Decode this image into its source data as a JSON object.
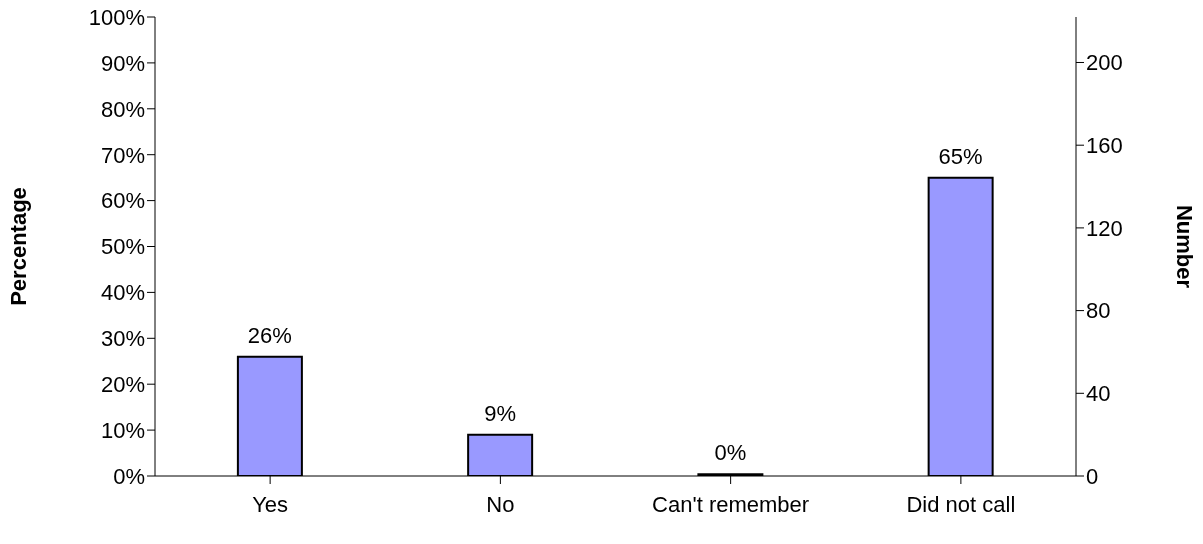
{
  "chart_data": {
    "type": "bar",
    "ylabel": "Percentage",
    "y2label": "Number",
    "categories": [
      "Yes",
      "No",
      "Can't remember",
      "Did not call"
    ],
    "values": [
      26,
      9,
      0.4,
      65
    ],
    "color": "#9999ff",
    "value_labels": [
      "26%",
      "9%",
      "0%",
      "65%"
    ],
    "ylim": [
      0,
      100
    ],
    "yticks": [
      {
        "value": 0,
        "label": "0%"
      },
      {
        "value": 10,
        "label": "10%"
      },
      {
        "value": 20,
        "label": "20%"
      },
      {
        "value": 30,
        "label": "30%"
      },
      {
        "value": 40,
        "label": "40%"
      },
      {
        "value": 50,
        "label": "50%"
      },
      {
        "value": 60,
        "label": "60%"
      },
      {
        "value": 70,
        "label": "70%"
      },
      {
        "value": 80,
        "label": "80%"
      },
      {
        "value": 90,
        "label": "90%"
      },
      {
        "value": 100,
        "label": "100%"
      }
    ],
    "y2lim": [
      0,
      222
    ],
    "y2ticks": [
      0,
      40,
      80,
      120,
      160,
      200
    ],
    "grid": false,
    "legend": false
  }
}
